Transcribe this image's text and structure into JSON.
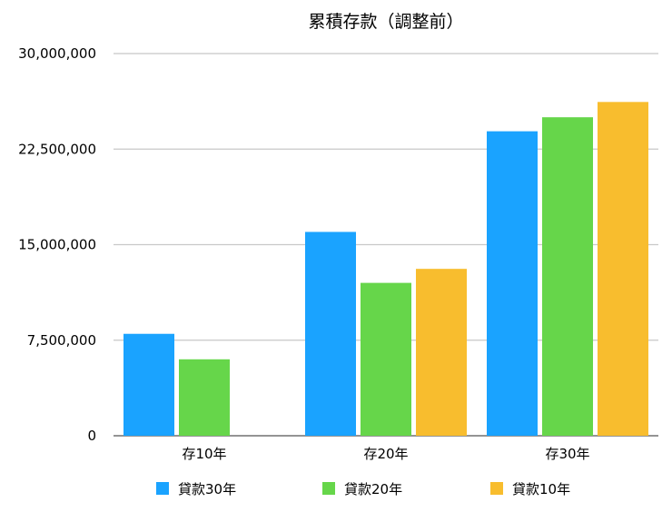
{
  "chart_data": {
    "type": "bar",
    "title": "累積存款（調整前）",
    "categories": [
      "存10年",
      "存20年",
      "存30年"
    ],
    "series": [
      {
        "name": "貸款30年",
        "color": "#1aa3ff",
        "values": [
          8000000,
          16000000,
          23900000
        ]
      },
      {
        "name": "貸款20年",
        "color": "#66d64a",
        "values": [
          6000000,
          12000000,
          25000000
        ]
      },
      {
        "name": "貸款10年",
        "color": "#f8bd2e",
        "values": [
          null,
          13100000,
          26200000
        ]
      }
    ],
    "ylim": [
      0,
      30000000
    ],
    "yticks": [
      0,
      7500000,
      15000000,
      22500000,
      30000000
    ],
    "ytick_labels": [
      "0",
      "7,500,000",
      "15,000,000",
      "22,500,000",
      "30,000,000"
    ],
    "grid": true,
    "legend_position": "bottom"
  }
}
